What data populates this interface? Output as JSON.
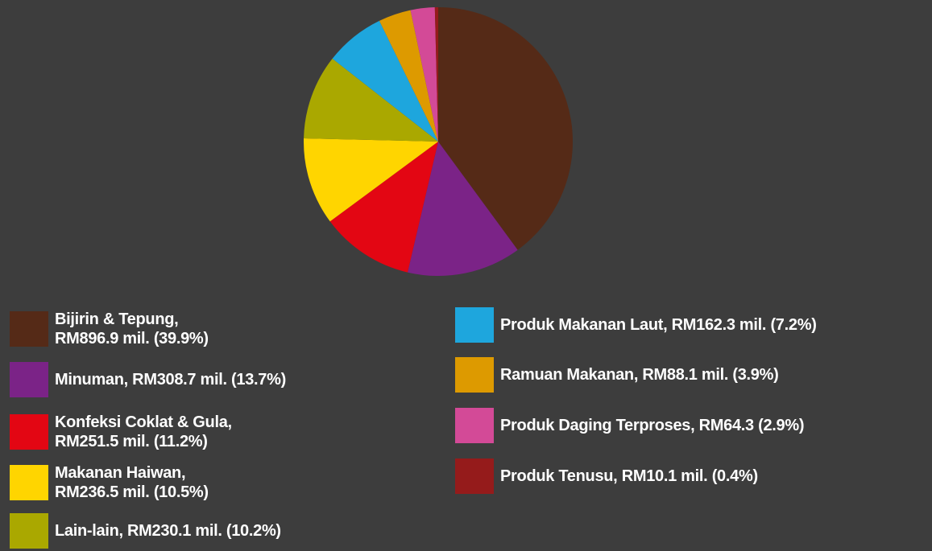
{
  "chart_data": {
    "type": "pie",
    "categories": [
      "Bijirin & Tepung,\nRM896.9 mil. (39.9%)",
      "Minuman, RM308.7 mil. (13.7%)",
      "Konfeksi Coklat & Gula,\nRM251.5 mil. (11.2%)",
      "Makanan Haiwan,\nRM236.5 mil. (10.5%)",
      "Lain-lain, RM230.1 mil. (10.2%)",
      "Produk Makanan Laut, RM162.3 mil. (7.2%)",
      "Ramuan Makanan, RM88.1 mil. (3.9%)",
      "Produk Daging Terproses, RM64.3 (2.9%)",
      "Produk Tenusu, RM10.1 mil. (0.4%)"
    ],
    "values": [
      39.9,
      13.7,
      11.2,
      10.5,
      10.2,
      7.2,
      3.9,
      2.9,
      0.4
    ],
    "colors": [
      "#552a17",
      "#7b2387",
      "#e30613",
      "#ffd500",
      "#aaa800",
      "#1ea6dd",
      "#dd9a00",
      "#d34a97",
      "#951b1b"
    ]
  }
}
